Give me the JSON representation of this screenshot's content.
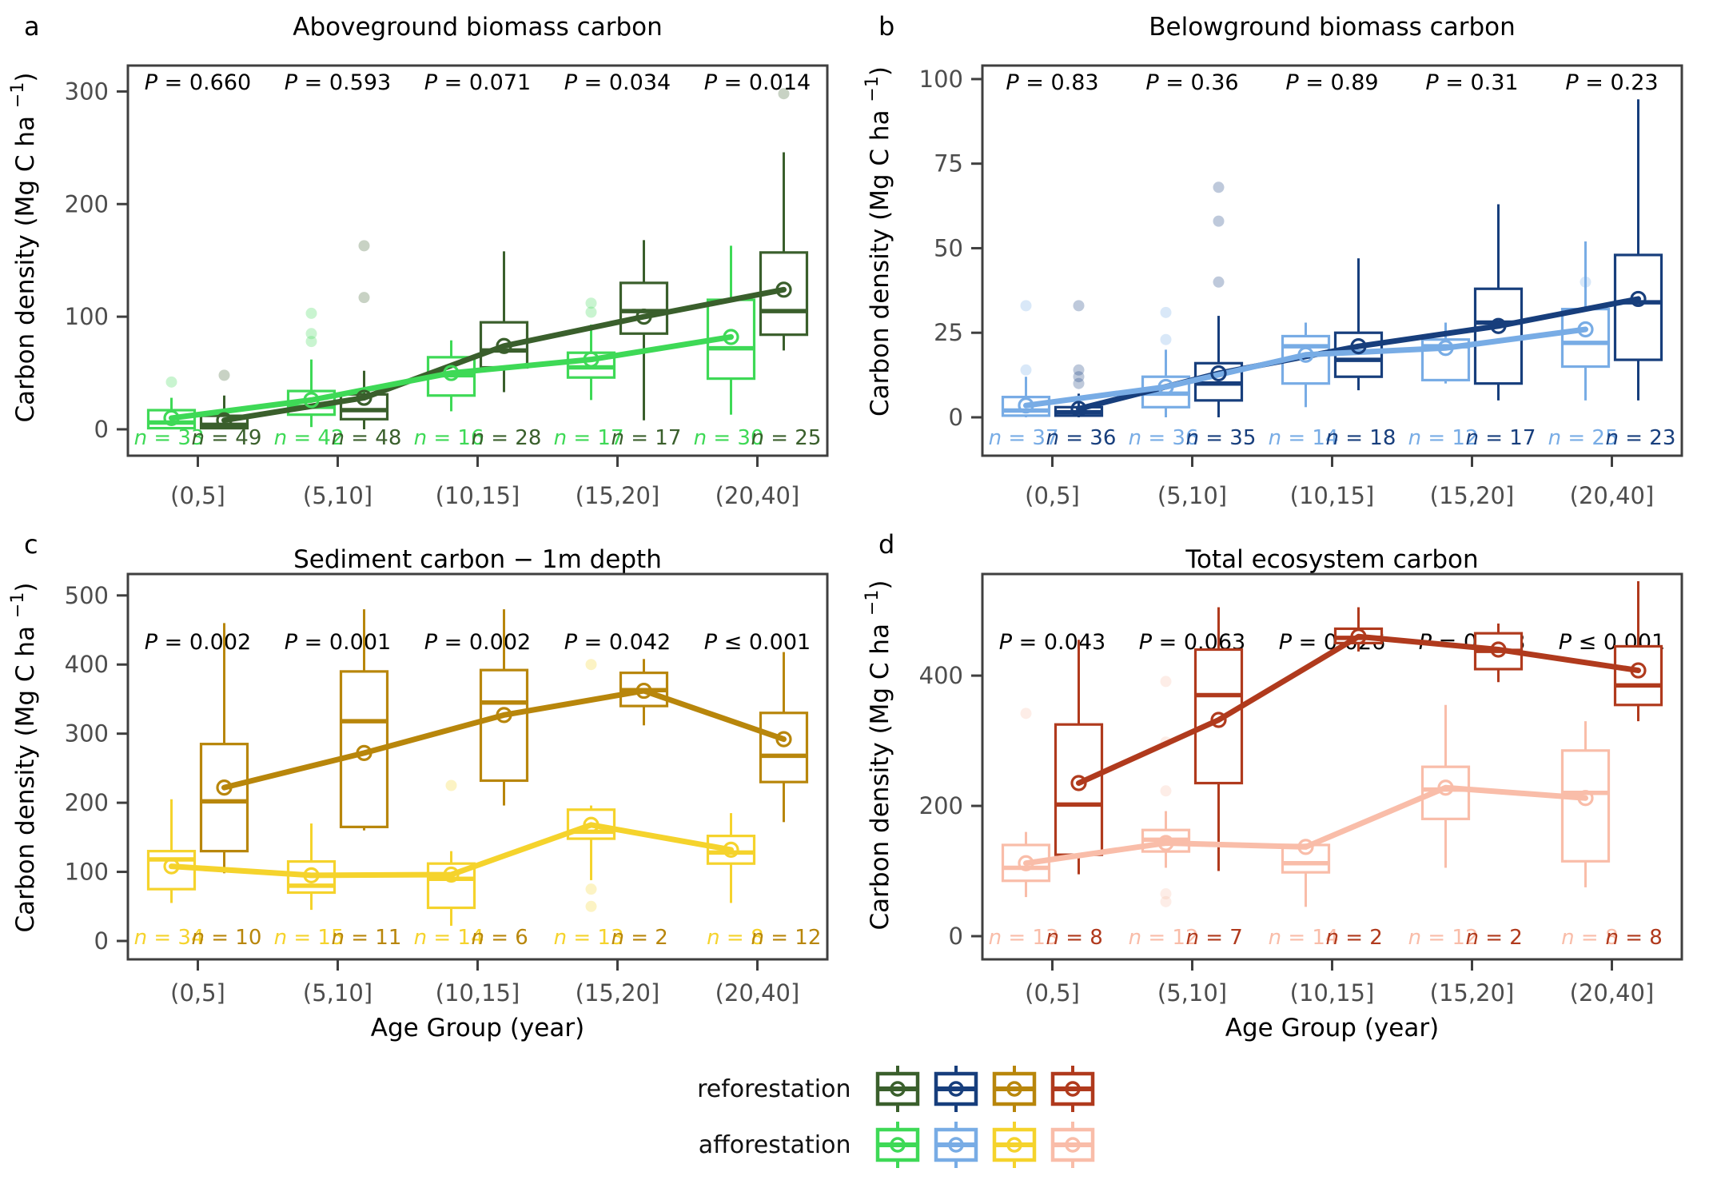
{
  "figure": {
    "xlabel": "Age Group (year)",
    "ylabel_main": "Carbon density (Mg C ha ",
    "ylabel_sup": "−1",
    "ylabel_end": ")",
    "categories": [
      "(0,5]",
      "(5,10]",
      "(10,15]",
      "(15,20]",
      "(20,40]"
    ],
    "axis_text_color": "#4d4d4d",
    "border_color": "#3f3f3f",
    "legend_rows": [
      {
        "label": "reforestation",
        "colors": [
          "#3A5F2C",
          "#173E7C",
          "#B8860B",
          "#B03A1D"
        ]
      },
      {
        "label": "afforestation",
        "colors": [
          "#3ED956",
          "#78ACE5",
          "#F5D32C",
          "#F9BDA9"
        ]
      }
    ]
  },
  "chart_data": [
    {
      "letter": "a",
      "title": "Aboveground biomass carbon",
      "type": "boxplot",
      "ylim": [
        0,
        323
      ],
      "yticks": [
        0,
        100,
        200,
        300
      ],
      "p_values": [
        "P = 0.660",
        "P = 0.593",
        "P = 0.071",
        "P = 0.034",
        "P = 0.014"
      ],
      "series": [
        {
          "name": "afforestation",
          "color": "#3ED956",
          "n": [
            33,
            42,
            16,
            17,
            30
          ],
          "boxes": [
            {
              "whislo": 0,
              "q1": 1,
              "med": 6,
              "q3": 17,
              "whishi": 28,
              "mean": 10,
              "outliers": [
                42
              ]
            },
            {
              "whislo": 2,
              "q1": 13,
              "med": 20,
              "q3": 34,
              "whishi": 62,
              "mean": 26,
              "outliers": [
                78,
                85,
                103
              ]
            },
            {
              "whislo": 16,
              "q1": 30,
              "med": 48,
              "q3": 64,
              "whishi": 79,
              "mean": 50,
              "outliers": []
            },
            {
              "whislo": 26,
              "q1": 46,
              "med": 55,
              "q3": 68,
              "whishi": 93,
              "mean": 62,
              "outliers": [
                104,
                112
              ]
            },
            {
              "whislo": 13,
              "q1": 45,
              "med": 72,
              "q3": 115,
              "whishi": 163,
              "mean": 82,
              "outliers": []
            }
          ]
        },
        {
          "name": "reforestation",
          "color": "#3A5F2C",
          "n": [
            49,
            48,
            28,
            17,
            25
          ],
          "boxes": [
            {
              "whislo": 0,
              "q1": 1,
              "med": 4,
              "q3": 12,
              "whishi": 30,
              "mean": 8,
              "outliers": [
                48
              ]
            },
            {
              "whislo": 0,
              "q1": 9,
              "med": 17,
              "q3": 31,
              "whishi": 52,
              "mean": 28,
              "outliers": [
                117,
                163
              ]
            },
            {
              "whislo": 33,
              "q1": 55,
              "med": 70,
              "q3": 95,
              "whishi": 158,
              "mean": 74,
              "outliers": []
            },
            {
              "whislo": 8,
              "q1": 85,
              "med": 105,
              "q3": 130,
              "whishi": 168,
              "mean": 100,
              "outliers": []
            },
            {
              "whislo": 70,
              "q1": 84,
              "med": 105,
              "q3": 157,
              "whishi": 246,
              "mean": 124,
              "outliers": [
                298
              ]
            }
          ]
        }
      ]
    },
    {
      "letter": "b",
      "title": "Belowground biomass carbon",
      "type": "boxplot",
      "ylim": [
        0,
        104
      ],
      "yticks": [
        0,
        25,
        50,
        75,
        100
      ],
      "p_values": [
        "P = 0.83",
        "P = 0.36",
        "P = 0.89",
        "P = 0.31",
        "P = 0.23"
      ],
      "series": [
        {
          "name": "afforestation",
          "color": "#78ACE5",
          "n": [
            37,
            36,
            14,
            12,
            25
          ],
          "boxes": [
            {
              "whislo": 0,
              "q1": 0.5,
              "med": 2,
              "q3": 6,
              "whishi": 12,
              "mean": 3.5,
              "outliers": [
                14,
                33
              ]
            },
            {
              "whislo": 0,
              "q1": 3,
              "med": 7,
              "q3": 12,
              "whishi": 20,
              "mean": 9,
              "outliers": [
                23,
                31
              ]
            },
            {
              "whislo": 3,
              "q1": 10,
              "med": 21,
              "q3": 24,
              "whishi": 28,
              "mean": 18.5,
              "outliers": []
            },
            {
              "whislo": 10,
              "q1": 11,
              "med": 21,
              "q3": 23,
              "whishi": 28,
              "mean": 20.5,
              "outliers": []
            },
            {
              "whislo": 5,
              "q1": 15,
              "med": 22,
              "q3": 32,
              "whishi": 52,
              "mean": 26,
              "outliers": [
                40
              ]
            }
          ]
        },
        {
          "name": "reforestation",
          "color": "#173E7C",
          "n": [
            36,
            35,
            18,
            17,
            23
          ],
          "boxes": [
            {
              "whislo": 0,
              "q1": 0.5,
              "med": 1.5,
              "q3": 3,
              "whishi": 7,
              "mean": 2.5,
              "outliers": [
                10,
                12,
                14,
                33
              ]
            },
            {
              "whislo": 0,
              "q1": 5,
              "med": 10,
              "q3": 16,
              "whishi": 30,
              "mean": 13,
              "outliers": [
                40,
                58,
                68
              ]
            },
            {
              "whislo": 8,
              "q1": 12,
              "med": 17,
              "q3": 25,
              "whishi": 47,
              "mean": 21,
              "outliers": []
            },
            {
              "whislo": 5,
              "q1": 10,
              "med": 28,
              "q3": 38,
              "whishi": 63,
              "mean": 27,
              "outliers": []
            },
            {
              "whislo": 5,
              "q1": 17,
              "med": 34,
              "q3": 48,
              "whishi": 94,
              "mean": 35,
              "outliers": []
            }
          ]
        }
      ]
    },
    {
      "letter": "c",
      "title": "Sediment carbon − 1m depth",
      "type": "boxplot",
      "ylim": [
        0,
        531
      ],
      "yticks": [
        0,
        100,
        200,
        300,
        400,
        500
      ],
      "p_values": [
        "P = 0.002",
        "P = 0.001",
        "P = 0.002",
        "P = 0.042",
        "P ≤ 0.001"
      ],
      "series": [
        {
          "name": "afforestation",
          "color": "#F5D32C",
          "n": [
            34,
            15,
            14,
            13,
            8
          ],
          "boxes": [
            {
              "whislo": 55,
              "q1": 75,
              "med": 118,
              "q3": 130,
              "whishi": 205,
              "mean": 108,
              "outliers": []
            },
            {
              "whislo": 45,
              "q1": 70,
              "med": 80,
              "q3": 115,
              "whishi": 170,
              "mean": 95,
              "outliers": []
            },
            {
              "whislo": 22,
              "q1": 48,
              "med": 90,
              "q3": 112,
              "whishi": 130,
              "mean": 96,
              "outliers": [
                225
              ]
            },
            {
              "whislo": 88,
              "q1": 148,
              "med": 158,
              "q3": 190,
              "whishi": 196,
              "mean": 168,
              "outliers": [
                400,
                75,
                50
              ]
            },
            {
              "whislo": 55,
              "q1": 112,
              "med": 128,
              "q3": 152,
              "whishi": 185,
              "mean": 132,
              "outliers": []
            }
          ]
        },
        {
          "name": "reforestation",
          "color": "#B8860B",
          "n": [
            10,
            11,
            6,
            2,
            12
          ],
          "boxes": [
            {
              "whislo": 98,
              "q1": 130,
              "med": 202,
              "q3": 285,
              "whishi": 460,
              "mean": 222,
              "outliers": []
            },
            {
              "whislo": 160,
              "q1": 165,
              "med": 318,
              "q3": 390,
              "whishi": 480,
              "mean": 272,
              "outliers": []
            },
            {
              "whislo": 196,
              "q1": 232,
              "med": 345,
              "q3": 392,
              "whishi": 480,
              "mean": 327,
              "outliers": []
            },
            {
              "whislo": 312,
              "q1": 340,
              "med": 363,
              "q3": 388,
              "whishi": 408,
              "mean": 362,
              "outliers": []
            },
            {
              "whislo": 172,
              "q1": 230,
              "med": 268,
              "q3": 330,
              "whishi": 418,
              "mean": 292,
              "outliers": []
            }
          ]
        }
      ]
    },
    {
      "letter": "d",
      "title": "Total ecosystem carbon",
      "type": "boxplot",
      "ylim": [
        0,
        556
      ],
      "yticks": [
        0,
        200,
        400
      ],
      "p_values": [
        "P = 0.043",
        "P = 0.063",
        "P = 0.026",
        "P = 0.028",
        "P ≤ 0.001"
      ],
      "series": [
        {
          "name": "afforestation",
          "color": "#F9BDA9",
          "n": [
            13,
            12,
            14,
            12,
            8
          ],
          "boxes": [
            {
              "whislo": 60,
              "q1": 85,
              "med": 105,
              "q3": 140,
              "whishi": 160,
              "mean": 112,
              "outliers": [
                342
              ]
            },
            {
              "whislo": 105,
              "q1": 130,
              "med": 148,
              "q3": 163,
              "whishi": 192,
              "mean": 143,
              "outliers": [
                53,
                65,
                223,
                298,
                391
              ]
            },
            {
              "whislo": 45,
              "q1": 98,
              "med": 112,
              "q3": 140,
              "whishi": 142,
              "mean": 137,
              "outliers": []
            },
            {
              "whislo": 105,
              "q1": 180,
              "med": 225,
              "q3": 260,
              "whishi": 355,
              "mean": 228,
              "outliers": []
            },
            {
              "whislo": 75,
              "q1": 115,
              "med": 220,
              "q3": 285,
              "whishi": 330,
              "mean": 212,
              "outliers": []
            }
          ]
        },
        {
          "name": "reforestation",
          "color": "#B03A1D",
          "n": [
            8,
            7,
            2,
            2,
            8
          ],
          "boxes": [
            {
              "whislo": 95,
              "q1": 125,
              "med": 202,
              "q3": 325,
              "whishi": 455,
              "mean": 235,
              "outliers": []
            },
            {
              "whislo": 100,
              "q1": 235,
              "med": 370,
              "q3": 440,
              "whishi": 505,
              "mean": 332,
              "outliers": []
            },
            {
              "whislo": 437,
              "q1": 450,
              "med": 458,
              "q3": 472,
              "whishi": 505,
              "mean": 460,
              "outliers": []
            },
            {
              "whislo": 390,
              "q1": 410,
              "med": 438,
              "q3": 465,
              "whishi": 480,
              "mean": 440,
              "outliers": []
            },
            {
              "whislo": 330,
              "q1": 355,
              "med": 385,
              "q3": 445,
              "whishi": 545,
              "mean": 408,
              "outliers": []
            }
          ]
        }
      ]
    }
  ]
}
